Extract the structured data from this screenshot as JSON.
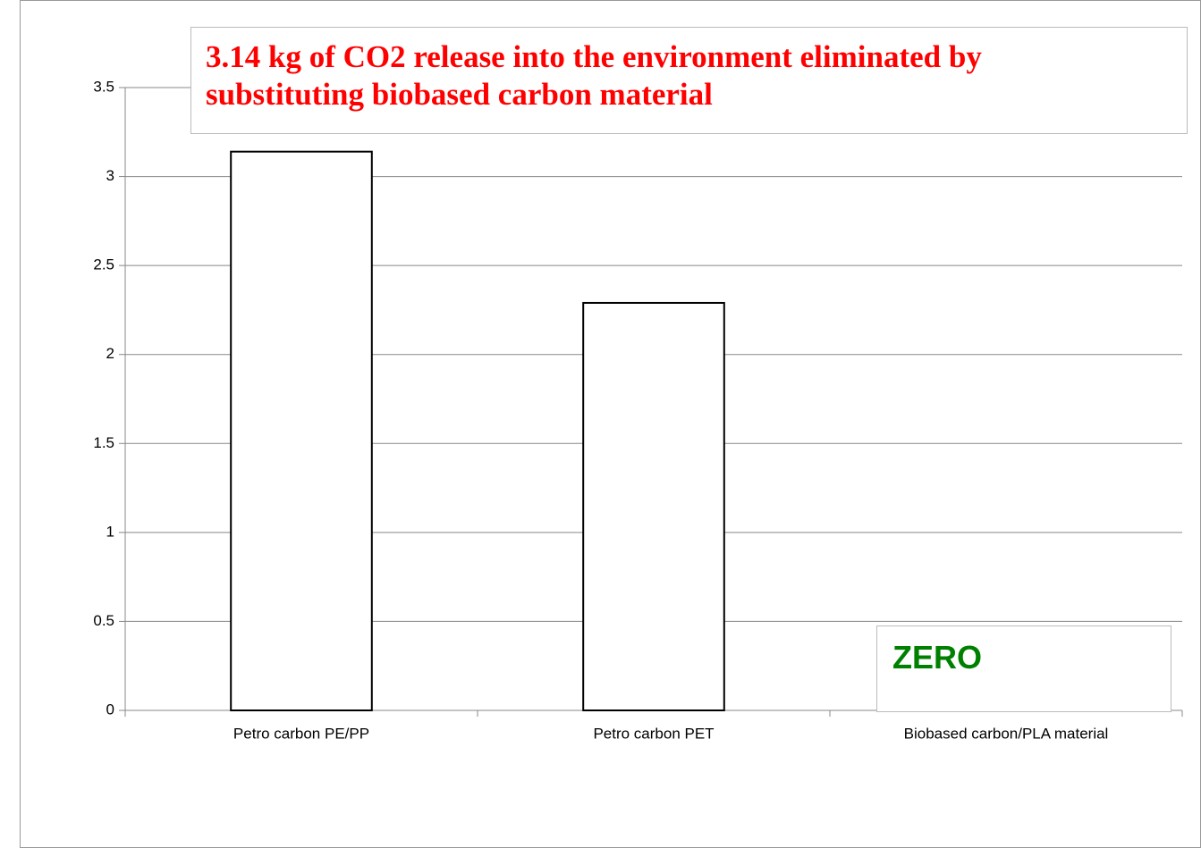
{
  "chart_data": {
    "type": "bar",
    "title": "3.14 kg of CO2 release into the environment eliminated by substituting biobased carbon material",
    "annotation": "ZERO",
    "categories": [
      "Petro carbon PE/PP",
      "Petro carbon PET",
      "Biobased carbon/PLA material"
    ],
    "values": [
      3.14,
      2.29,
      0
    ],
    "color": "#ffffff",
    "ylim": [
      0,
      3.5
    ],
    "yticks": [
      0,
      0.5,
      1,
      1.5,
      2,
      2.5,
      3,
      3.5
    ],
    "grid": true
  }
}
